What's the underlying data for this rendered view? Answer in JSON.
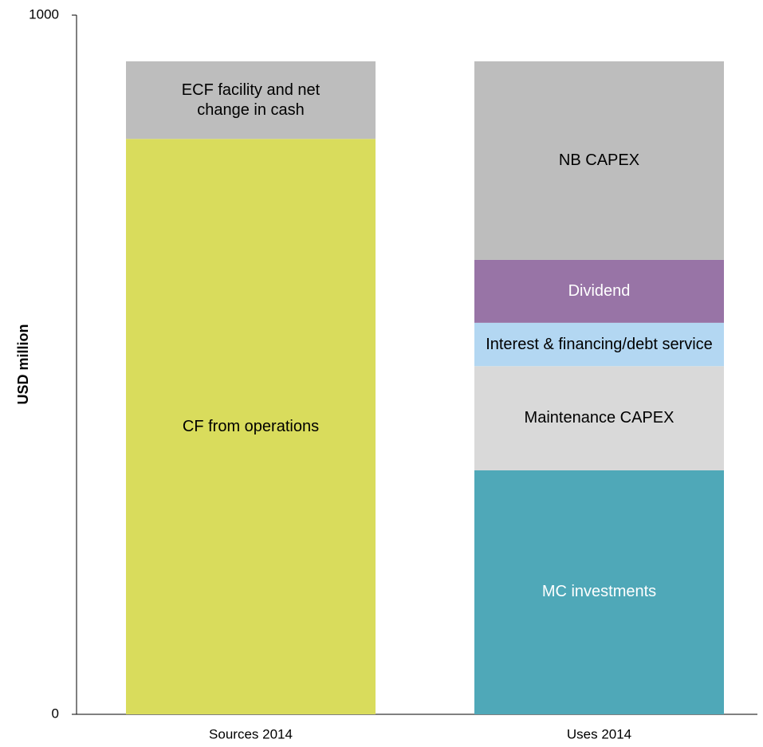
{
  "chart_data": {
    "type": "stacked_bar",
    "y_label": "USD million",
    "categories": [
      "Sources 2014",
      "Uses 2014"
    ],
    "ylim": [
      0,
      1000
    ],
    "yticks": [
      0,
      1000
    ],
    "series": [
      {
        "name": "CF from operations",
        "color": "#d9dc5c",
        "label_color": "#000000",
        "values": [
          823,
          null
        ]
      },
      {
        "name": "ECF facility and net change in cash",
        "color": "#bdbdbd",
        "label_color": "#000000",
        "values": [
          111,
          null
        ]
      },
      {
        "name": "MC investments",
        "color": "#4fa8b8",
        "label_color": "#ffffff",
        "values": [
          null,
          349
        ]
      },
      {
        "name": "Maintenance CAPEX",
        "color": "#d9d9d9",
        "label_color": "#000000",
        "values": [
          null,
          149
        ]
      },
      {
        "name": "Interest & financing/debt service",
        "color": "#b3d7f2",
        "label_color": "#000000",
        "values": [
          null,
          62
        ]
      },
      {
        "name": "Dividend",
        "color": "#9874a6",
        "label_color": "#ffffff",
        "values": [
          null,
          90
        ]
      },
      {
        "name": "NB CAPEX",
        "color": "#bdbdbd",
        "label_color": "#000000",
        "values": [
          null,
          284
        ]
      }
    ]
  }
}
